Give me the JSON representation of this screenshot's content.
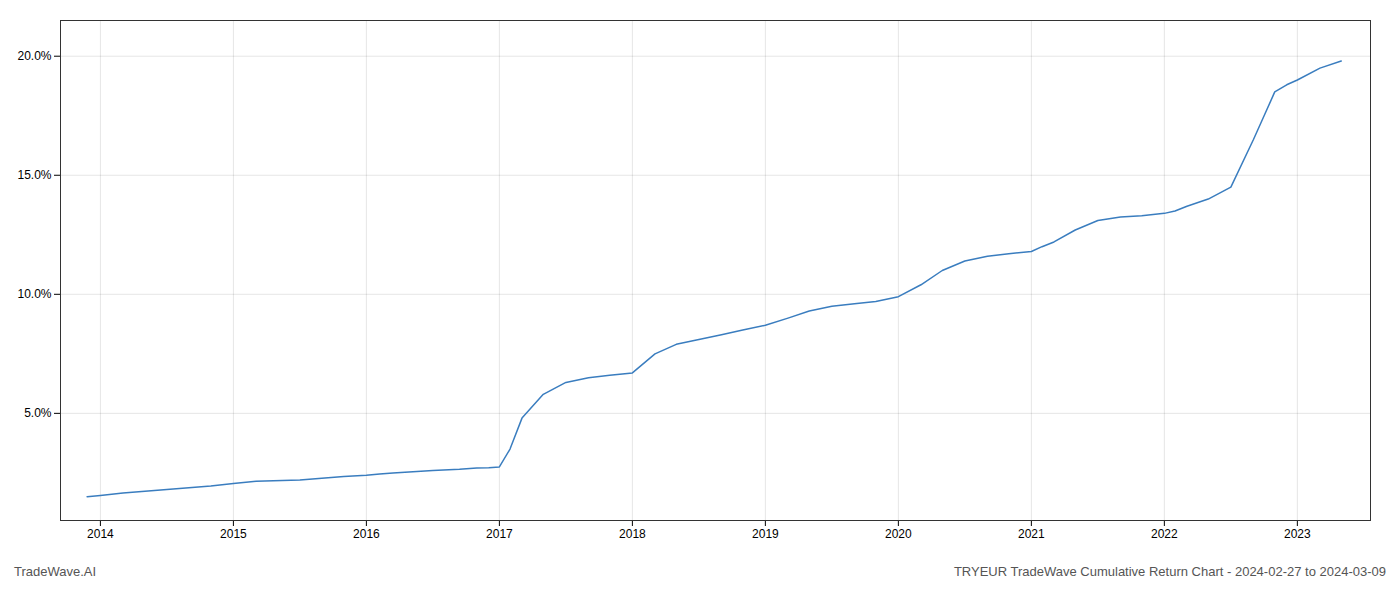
{
  "chart_data": {
    "type": "line",
    "title": "TRYEUR TradeWave Cumulative Return Chart - 2024-02-27 to 2024-03-09",
    "annotations": [
      "TradeWave.AI"
    ],
    "x": [
      2013.9,
      2014.0,
      2014.17,
      2014.5,
      2014.83,
      2015.0,
      2015.17,
      2015.5,
      2015.83,
      2016.0,
      2016.1,
      2016.2,
      2016.5,
      2016.7,
      2016.83,
      2016.92,
      2017.0,
      2017.08,
      2017.17,
      2017.33,
      2017.5,
      2017.67,
      2017.83,
      2018.0,
      2018.17,
      2018.33,
      2018.5,
      2018.67,
      2018.83,
      2019.0,
      2019.17,
      2019.33,
      2019.5,
      2019.67,
      2019.83,
      2020.0,
      2020.17,
      2020.33,
      2020.5,
      2020.67,
      2020.83,
      2021.0,
      2021.08,
      2021.17,
      2021.33,
      2021.5,
      2021.67,
      2021.83,
      2022.0,
      2022.08,
      2022.17,
      2022.33,
      2022.5,
      2022.67,
      2022.75,
      2022.83,
      2022.92,
      2023.0,
      2023.17,
      2023.33
    ],
    "values": [
      1.5,
      1.55,
      1.65,
      1.8,
      1.95,
      2.05,
      2.15,
      2.2,
      2.35,
      2.4,
      2.45,
      2.5,
      2.6,
      2.65,
      2.7,
      2.72,
      2.75,
      3.5,
      4.8,
      5.8,
      6.3,
      6.5,
      6.6,
      6.7,
      7.5,
      7.9,
      8.1,
      8.3,
      8.5,
      8.7,
      9.0,
      9.3,
      9.5,
      9.6,
      9.7,
      9.9,
      10.4,
      11.0,
      11.4,
      11.6,
      11.7,
      11.8,
      12.0,
      12.2,
      12.7,
      13.1,
      13.25,
      13.3,
      13.4,
      13.5,
      13.7,
      14.0,
      14.5,
      16.5,
      17.5,
      18.5,
      18.8,
      19.0,
      19.5,
      19.8
    ],
    "color": "#3a7dbf",
    "xlim": [
      2013.7,
      2023.55
    ],
    "xticks": [
      2014,
      2015,
      2016,
      2017,
      2018,
      2019,
      2020,
      2021,
      2022,
      2023
    ],
    "ylim": [
      0.5,
      21.5
    ],
    "yticks": [
      {
        "value": 5.0,
        "label": "5.0%"
      },
      {
        "value": 10.0,
        "label": "10.0%"
      },
      {
        "value": 15.0,
        "label": "15.0%"
      },
      {
        "value": 20.0,
        "label": "20.0%"
      }
    ],
    "grid": true
  }
}
